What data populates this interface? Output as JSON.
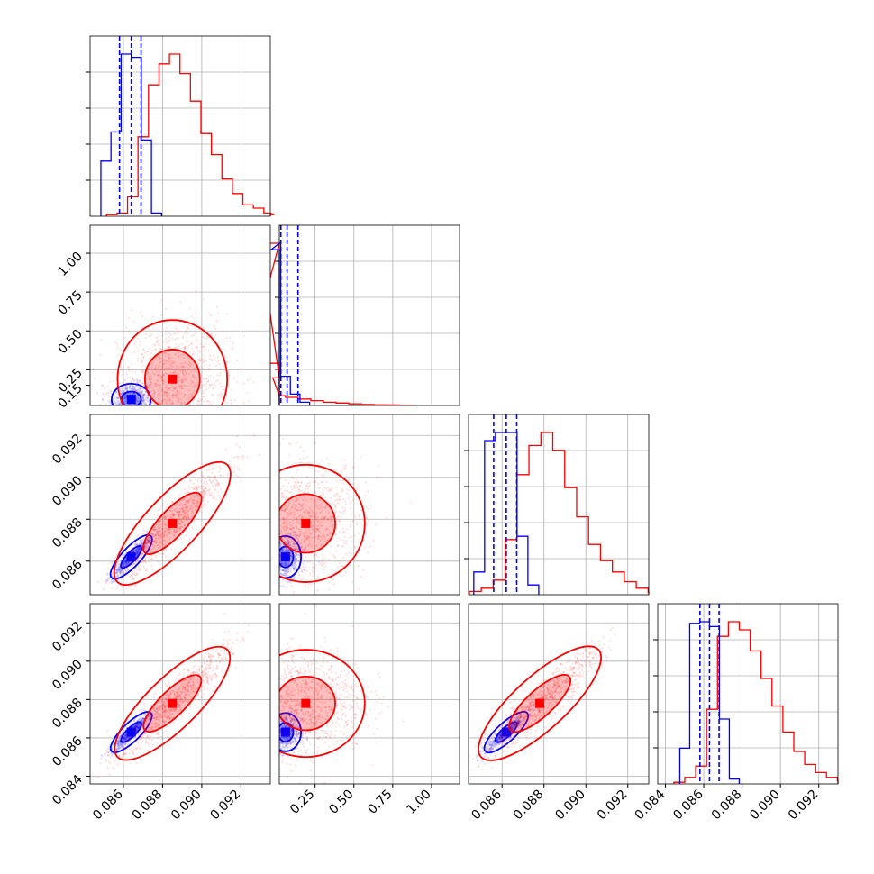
{
  "chart_data": {
    "type": "corner",
    "title": "",
    "grid": true,
    "colors": {
      "blue": "#0000ff",
      "red": "#ff0000"
    },
    "series": [],
    "parameters": [
      {
        "range": [
          0.0843,
          0.0935
        ],
        "tick_values": [
          0.086,
          0.088,
          0.09,
          0.092
        ],
        "tick_labels": [
          "0.086",
          "0.088",
          "0.090",
          "0.092"
        ]
      },
      {
        "range": [
          0.02,
          1.18
        ],
        "tick_values": [
          0.25,
          0.5,
          0.75,
          1.0
        ],
        "tick_labels": [
          "0.25",
          "0.50",
          "0.75",
          "1.00"
        ],
        "row_tick_values": [
          0.25,
          0.5,
          0.75,
          1.0
        ],
        "row_tick_labels": [
          "0.25",
          "0.50",
          "0.75",
          "1.00"
        ],
        "extra_row_tick": [
          0.15,
          "0.15"
        ]
      },
      {
        "range": [
          0.0844,
          0.093
        ],
        "tick_values": [
          0.086,
          0.088,
          0.09,
          0.092
        ],
        "tick_labels": [
          "0.086",
          "0.088",
          "0.090",
          "0.092"
        ]
      },
      {
        "range": [
          0.0836,
          0.093
        ],
        "tick_values": [
          0.084,
          0.086,
          0.088,
          0.09,
          0.092
        ],
        "tick_labels": [
          "0.084",
          "0.086",
          "0.088",
          "0.090",
          "0.092"
        ]
      }
    ],
    "blue": {
      "quantiles": [
        [
          0.0858,
          0.0864,
          0.0869
        ],
        [
          0.03,
          0.07,
          0.14
        ],
        [
          0.0856,
          0.0862,
          0.0867
        ],
        [
          0.0858,
          0.0863,
          0.0868
        ]
      ],
      "hist": [
        [
          0.34,
          0.52,
          1.0,
          0.98,
          0.47,
          0.02
        ],
        [
          0.96,
          1.0,
          0.18,
          0.07,
          0.02
        ],
        [
          0.14,
          0.95,
          1.0,
          1.0,
          0.36,
          0.06
        ],
        [
          0.22,
          0.99,
          1.0,
          0.97,
          0.4,
          0.03
        ]
      ],
      "center": [
        0.0864,
        0.06,
        0.0862,
        0.0863
      ],
      "sd": [
        0.0005,
        0.05,
        0.0005,
        0.0005
      ]
    },
    "red": {
      "hist": [
        [
          0.01,
          0.02,
          0.12,
          0.49,
          0.81,
          0.94,
          1.0,
          0.88,
          0.71,
          0.51,
          0.38,
          0.23,
          0.14,
          0.07,
          0.05,
          0.02,
          0.01
        ],
        [
          0.26,
          1.0,
          0.17,
          0.06,
          0.05,
          0.04,
          0.03,
          0.02,
          0.015,
          0.01,
          0.006,
          0.004,
          0.003,
          0.002
        ],
        [
          0.02,
          0.04,
          0.09,
          0.34,
          0.74,
          0.92,
          1.0,
          0.89,
          0.66,
          0.48,
          0.31,
          0.21,
          0.14,
          0.08,
          0.04,
          0.015
        ],
        [
          0.01,
          0.04,
          0.11,
          0.46,
          0.91,
          1.0,
          0.95,
          0.82,
          0.65,
          0.48,
          0.32,
          0.2,
          0.12,
          0.07,
          0.04,
          0.02
        ]
      ],
      "center": [
        0.0885,
        0.19,
        0.0878,
        0.0878
      ],
      "sd": [
        0.0014,
        0.19,
        0.0014,
        0.0014
      ]
    },
    "panel_order": [
      "0-0",
      "1-0",
      "1-1",
      "2-0",
      "2-1",
      "2-2",
      "3-0",
      "3-1",
      "3-2",
      "3-3"
    ]
  }
}
